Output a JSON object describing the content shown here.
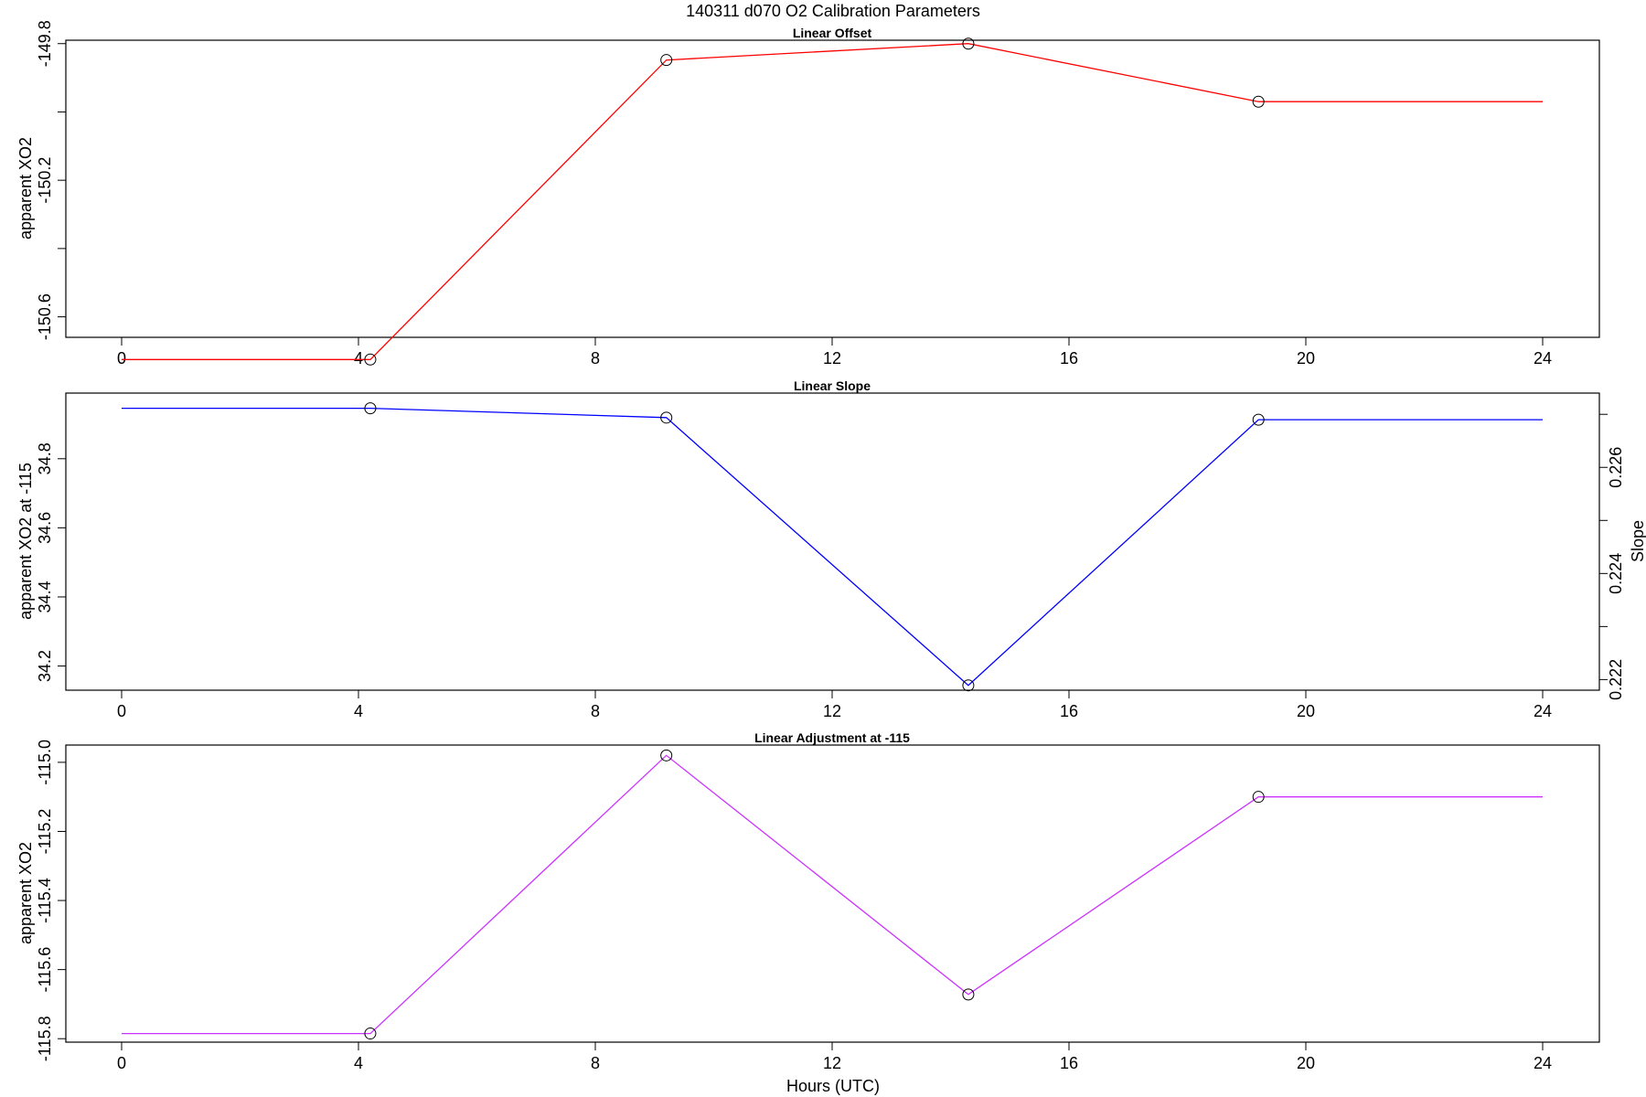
{
  "page": {
    "title": "140311   d070   O2 Calibration Parameters",
    "xlabel": "Hours (UTC)"
  },
  "chart_data": [
    {
      "type": "line",
      "title": "Linear Offset",
      "xlabel": "",
      "ylabel": "apparent XO2",
      "xlim": [
        0,
        24
      ],
      "ylim": [
        -150.66,
        -149.79
      ],
      "x_ticks": [
        "0",
        "4",
        "8",
        "12",
        "16",
        "20",
        "24"
      ],
      "y_ticks": [
        {
          "value": -149.8,
          "label": "-149.8"
        },
        {
          "value": -150.0,
          "label": ""
        },
        {
          "value": -150.2,
          "label": "-150.2"
        },
        {
          "value": -150.4,
          "label": ""
        },
        {
          "value": -150.6,
          "label": "-150.6"
        }
      ],
      "line_color": "#ff0000",
      "series": [
        {
          "x": [
            0,
            4.2,
            9.2,
            14.3,
            19.2,
            24
          ],
          "y": [
            -150.725,
            -150.725,
            -149.848,
            -149.8,
            -149.97,
            -149.97
          ]
        }
      ],
      "markers": {
        "x": [
          4.2,
          9.2,
          14.3,
          19.2
        ],
        "y": [
          -150.725,
          -149.848,
          -149.8,
          -149.97
        ]
      }
    },
    {
      "type": "line",
      "title": "Linear Slope",
      "xlabel": "",
      "ylabel": "apparent XO2 at -115",
      "ylabel_right": "Slope",
      "xlim": [
        0,
        24
      ],
      "ylim": [
        34.13,
        34.99
      ],
      "x_ticks": [
        "0",
        "4",
        "8",
        "12",
        "16",
        "20",
        "24"
      ],
      "y_ticks": [
        {
          "value": 34.2,
          "label": "34.2"
        },
        {
          "value": 34.4,
          "label": "34.4"
        },
        {
          "value": 34.6,
          "label": "34.6"
        },
        {
          "value": 34.8,
          "label": "34.8"
        }
      ],
      "y2lim": [
        0.2218,
        0.2274
      ],
      "y2_ticks": [
        {
          "value": 0.222,
          "label": "0.222"
        },
        {
          "value": 0.223,
          "label": ""
        },
        {
          "value": 0.224,
          "label": "0.224"
        },
        {
          "value": 0.225,
          "label": ""
        },
        {
          "value": 0.226,
          "label": "0.226"
        },
        {
          "value": 0.227,
          "label": ""
        }
      ],
      "line_color": "#0000ff",
      "series": [
        {
          "x": [
            0,
            4.2,
            9.2,
            14.3,
            19.2,
            24
          ],
          "y": [
            34.946,
            34.946,
            34.919,
            34.144,
            34.913,
            34.913
          ]
        }
      ],
      "markers": {
        "x": [
          4.2,
          9.2,
          14.3,
          19.2
        ],
        "y": [
          34.946,
          34.919,
          34.144,
          34.913
        ]
      }
    },
    {
      "type": "line",
      "title": "Linear Adjustment at -115",
      "xlabel": "Hours (UTC)",
      "ylabel": "apparent XO2",
      "xlim": [
        0,
        24
      ],
      "ylim": [
        -115.81,
        -114.95
      ],
      "x_ticks": [
        "0",
        "4",
        "8",
        "12",
        "16",
        "20",
        "24"
      ],
      "y_ticks": [
        {
          "value": -115.8,
          "label": "-115.8"
        },
        {
          "value": -115.6,
          "label": "-115.6"
        },
        {
          "value": -115.4,
          "label": "-115.4"
        },
        {
          "value": -115.2,
          "label": "-115.2"
        },
        {
          "value": -115.0,
          "label": "-115.0"
        }
      ],
      "line_color": "#cc33ff",
      "series": [
        {
          "x": [
            0,
            4.2,
            9.2,
            14.3,
            19.2,
            24
          ],
          "y": [
            -115.785,
            -115.785,
            -114.98,
            -115.672,
            -115.1,
            -115.1
          ]
        }
      ],
      "markers": {
        "x": [
          4.2,
          9.2,
          14.3,
          19.2
        ],
        "y": [
          -115.785,
          -114.98,
          -115.672,
          -115.1
        ]
      }
    }
  ]
}
